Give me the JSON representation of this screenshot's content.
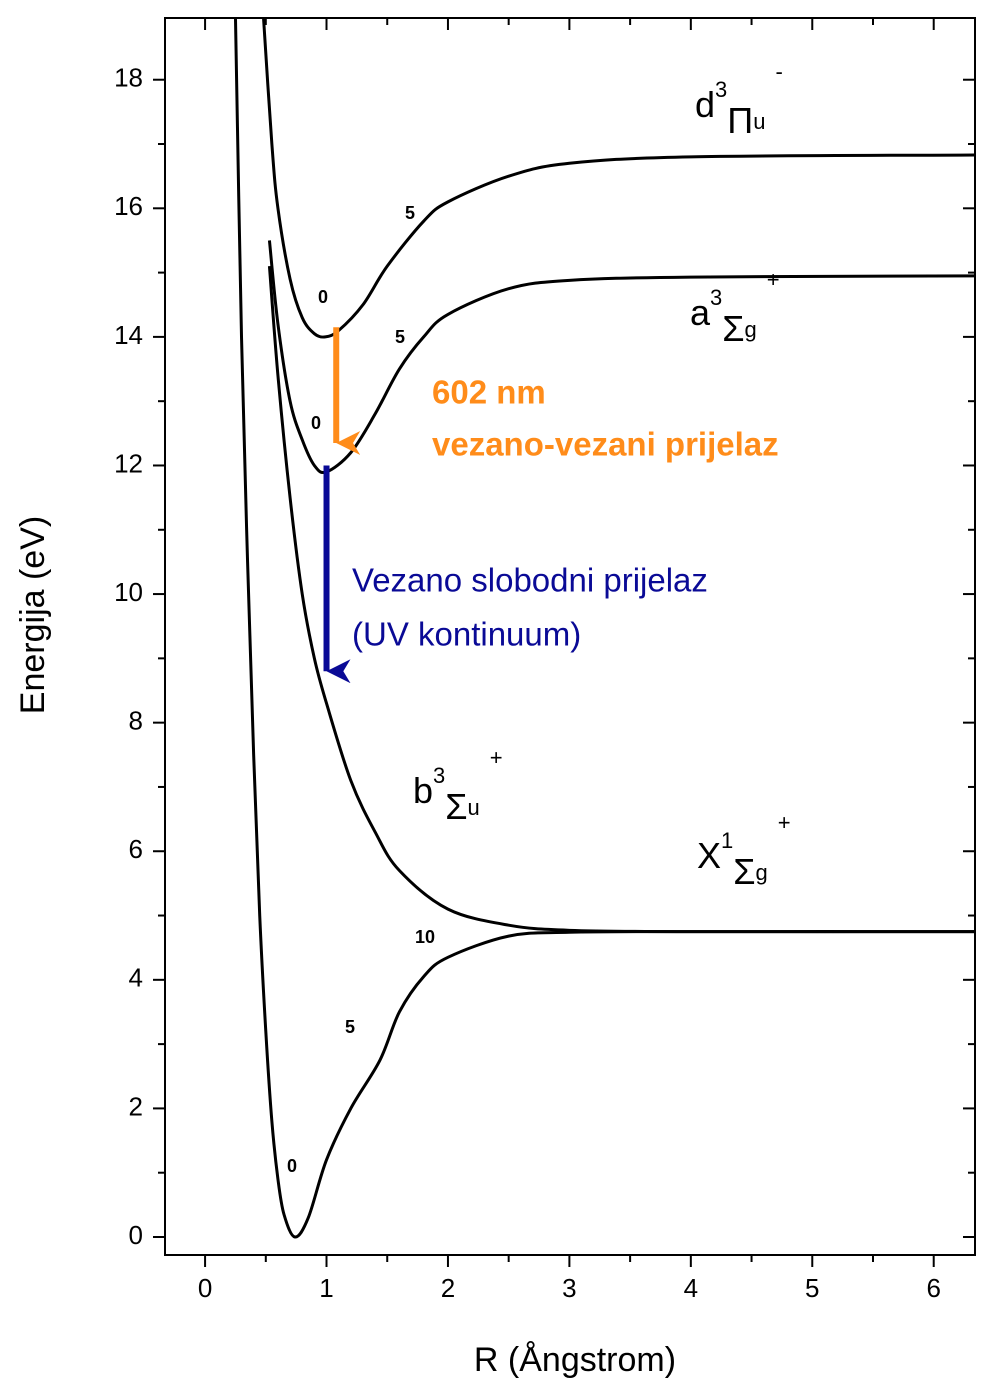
{
  "chart_data": {
    "type": "line",
    "xlabel": "R (Ångstrom)",
    "ylabel": "Energija (eV)",
    "xlim": [
      -0.33,
      6.34
    ],
    "ylim": [
      -0.28,
      18.96
    ],
    "xticks": [
      0,
      1,
      2,
      3,
      4,
      5,
      6
    ],
    "yticks": [
      0,
      2,
      4,
      6,
      8,
      10,
      12,
      14,
      16,
      18
    ],
    "xminorticks": [
      0.5,
      1.5,
      2.5,
      3.5,
      4.5,
      5.5
    ],
    "yminorticks": [
      1,
      3,
      5,
      7,
      9,
      11,
      13,
      15,
      17
    ],
    "series": [
      {
        "name_parts": [
          "X",
          "1",
          "Σ",
          "g",
          "+"
        ],
        "color": "#000000",
        "x": [
          0.25,
          0.3,
          0.35,
          0.4,
          0.45,
          0.5,
          0.55,
          0.6,
          0.65,
          0.74,
          0.85,
          1.0,
          1.2,
          1.44,
          1.6,
          1.8,
          2.0,
          2.5,
          3.0,
          4.0,
          6.34
        ],
        "values": [
          19,
          14,
          10.5,
          7.5,
          5,
          3.2,
          1.8,
          0.9,
          0.35,
          0,
          0.3,
          1.2,
          2.0,
          2.75,
          3.5,
          4.05,
          4.35,
          4.68,
          4.74,
          4.75,
          4.75
        ]
      },
      {
        "name_parts": [
          "b",
          "3",
          "Σ",
          "u",
          "+"
        ],
        "color": "#000000",
        "x": [
          0.53,
          0.6,
          0.7,
          0.8,
          0.9,
          1.0,
          1.2,
          1.4,
          1.6,
          2.0,
          2.5,
          3.0,
          4.0,
          6.34
        ],
        "values": [
          15.1,
          13.4,
          11.5,
          10.0,
          9.0,
          8.3,
          7.1,
          6.3,
          5.7,
          5.1,
          4.85,
          4.77,
          4.75,
          4.75
        ]
      },
      {
        "name_parts": [
          "a",
          "3",
          "Σ",
          "g",
          "+"
        ],
        "color": "#000000",
        "x": [
          0.53,
          0.6,
          0.7,
          0.8,
          0.9,
          1.0,
          1.2,
          1.4,
          1.6,
          1.8,
          2.0,
          2.5,
          3.0,
          4.0,
          6.34
        ],
        "values": [
          15.5,
          14.2,
          13.0,
          12.4,
          12.0,
          11.9,
          12.2,
          12.8,
          13.5,
          14.0,
          14.35,
          14.75,
          14.88,
          14.93,
          14.95
        ]
      },
      {
        "name_parts": [
          "d",
          "3",
          "Π",
          "u",
          "-"
        ],
        "color": "#000000",
        "x": [
          0.48,
          0.55,
          0.6,
          0.7,
          0.8,
          0.9,
          0.99,
          1.1,
          1.3,
          1.5,
          1.8,
          2.0,
          2.5,
          3.0,
          4.0,
          6.34
        ],
        "values": [
          19,
          17,
          16,
          14.9,
          14.3,
          14.05,
          14.0,
          14.1,
          14.5,
          15.1,
          15.8,
          16.1,
          16.5,
          16.7,
          16.8,
          16.83
        ]
      }
    ],
    "annotations": [
      "0",
      "5",
      "10",
      "0",
      "5",
      "0",
      "5",
      "602 nm",
      "vezano-vezani prijelaz",
      "Vezano slobodni prijelaz",
      "(UV kontinuum)"
    ]
  }
}
